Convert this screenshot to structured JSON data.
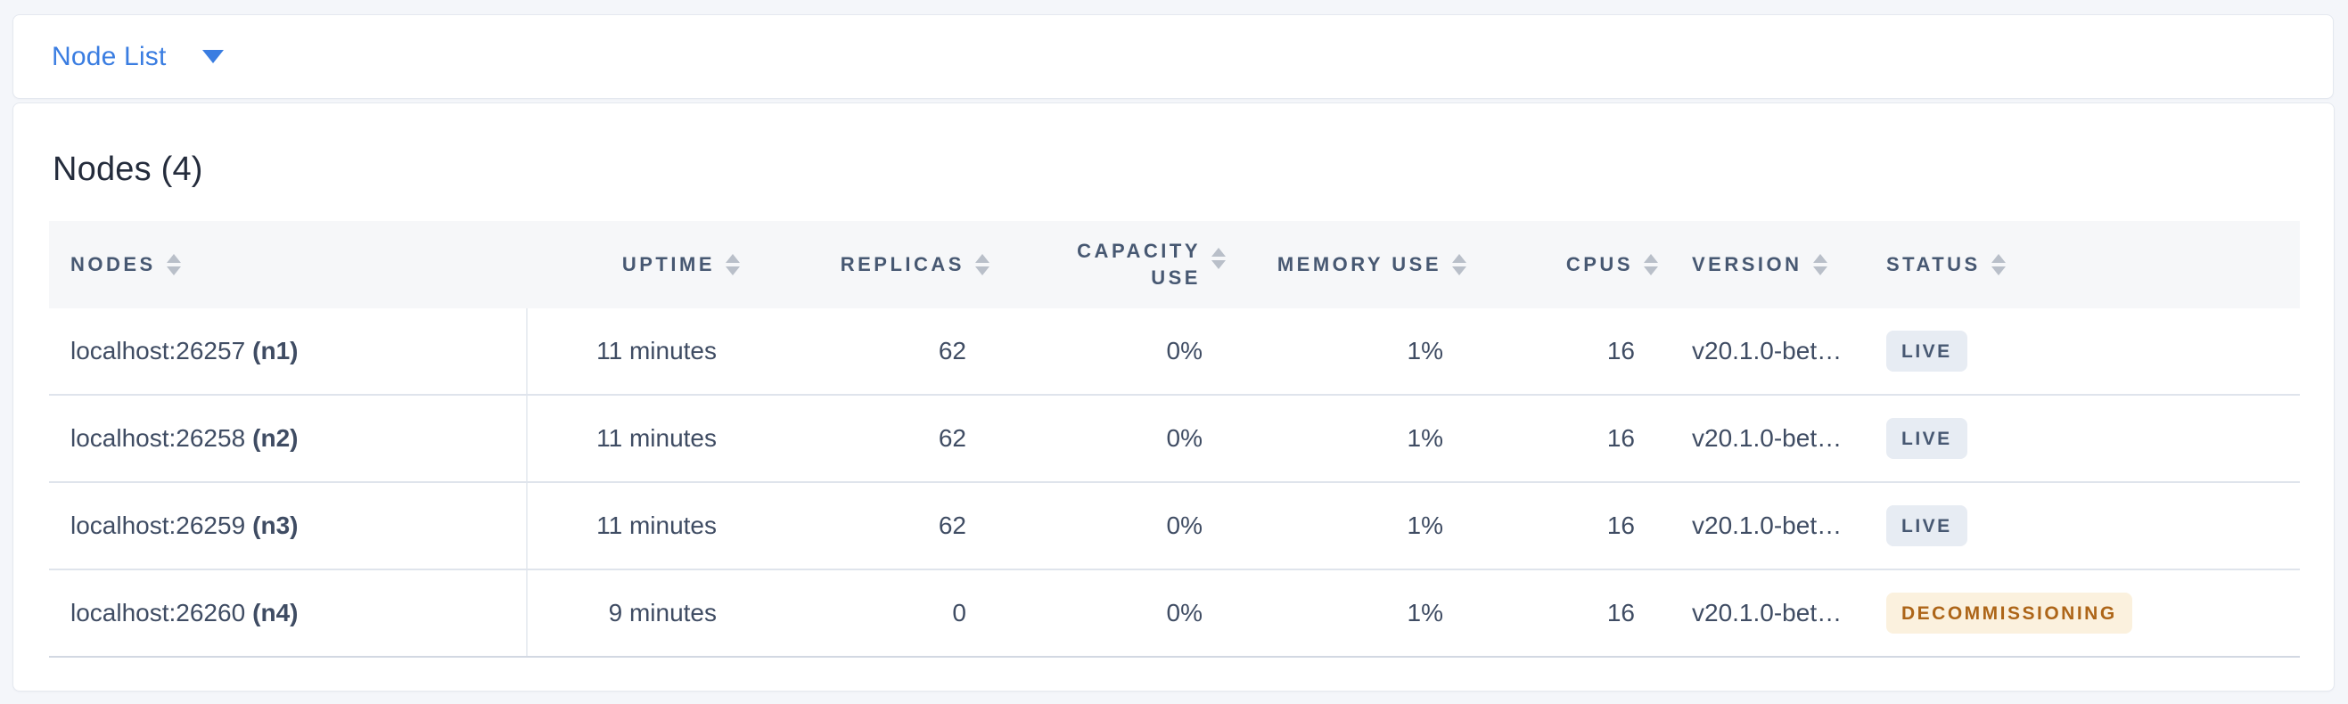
{
  "colors": {
    "page_background": "#f4f6fa",
    "accent_blue": "#3a7de1",
    "header_text": "#475872",
    "body_text": "#3f4c63",
    "live_badge_bg": "#e7ecf3",
    "live_badge_text": "#475872",
    "decommissioning_badge_bg": "#fbf1de",
    "decommissioning_badge_text": "#ad6518"
  },
  "selector": {
    "label": "Node List",
    "icon": "caret-down-icon"
  },
  "main": {
    "title": "Nodes (4)",
    "table": {
      "sort_icon": "sort-arrows-icon",
      "columns": [
        {
          "key": "nodes",
          "label": "NODES",
          "align": "left",
          "sortable": true
        },
        {
          "key": "uptime",
          "label": "UPTIME",
          "align": "right",
          "sortable": true
        },
        {
          "key": "replicas",
          "label": "REPLICAS",
          "align": "right",
          "sortable": true
        },
        {
          "key": "capacity_use",
          "label": "CAPACITY USE",
          "align": "right",
          "sortable": true
        },
        {
          "key": "memory_use",
          "label": "MEMORY USE",
          "align": "right",
          "sortable": true
        },
        {
          "key": "cpus",
          "label": "CPUS",
          "align": "right",
          "sortable": true
        },
        {
          "key": "version",
          "label": "VERSION",
          "align": "left",
          "sortable": true
        },
        {
          "key": "status",
          "label": "STATUS",
          "align": "left",
          "sortable": true
        }
      ],
      "rows": [
        {
          "address": "localhost:26257",
          "id": "(n1)",
          "uptime": "11 minutes",
          "replicas": "62",
          "capacity_use": "0%",
          "memory_use": "1%",
          "cpus": "16",
          "version": "v20.1.0-bet…",
          "status": "LIVE",
          "status_type": "live"
        },
        {
          "address": "localhost:26258",
          "id": "(n2)",
          "uptime": "11 minutes",
          "replicas": "62",
          "capacity_use": "0%",
          "memory_use": "1%",
          "cpus": "16",
          "version": "v20.1.0-bet…",
          "status": "LIVE",
          "status_type": "live"
        },
        {
          "address": "localhost:26259",
          "id": "(n3)",
          "uptime": "11 minutes",
          "replicas": "62",
          "capacity_use": "0%",
          "memory_use": "1%",
          "cpus": "16",
          "version": "v20.1.0-bet…",
          "status": "LIVE",
          "status_type": "live"
        },
        {
          "address": "localhost:26260",
          "id": "(n4)",
          "uptime": "9 minutes",
          "replicas": "0",
          "capacity_use": "0%",
          "memory_use": "1%",
          "cpus": "16",
          "version": "v20.1.0-bet…",
          "status": "DECOMMISSIONING",
          "status_type": "decommissioning"
        }
      ]
    }
  }
}
